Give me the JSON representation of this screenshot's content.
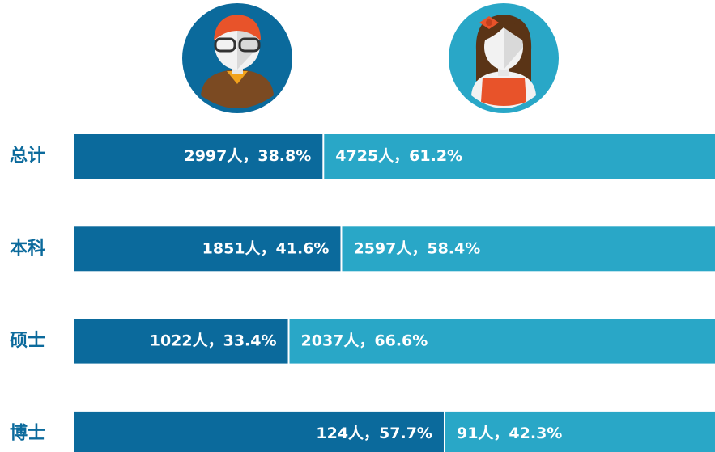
{
  "chart_data": {
    "type": "stacked_barh",
    "categories": [
      "总计",
      "本科",
      "硕士",
      "博士"
    ],
    "series": [
      {
        "color": "#0b6a9c",
        "values": [
          38.8,
          41.6,
          33.4,
          57.7
        ],
        "value_labels": [
          "2997人，38.8%",
          "1851人，41.6%",
          "1022人，33.4%",
          "124人，57.7%"
        ]
      },
      {
        "color": "#29a7c7",
        "values": [
          61.2,
          58.4,
          66.6,
          42.3
        ],
        "value_labels": [
          "4725人，61.2%",
          "2597人，58.4%",
          "2037人，66.6%",
          "91人，42.3%"
        ]
      }
    ],
    "xlim": [
      0,
      100
    ]
  }
}
